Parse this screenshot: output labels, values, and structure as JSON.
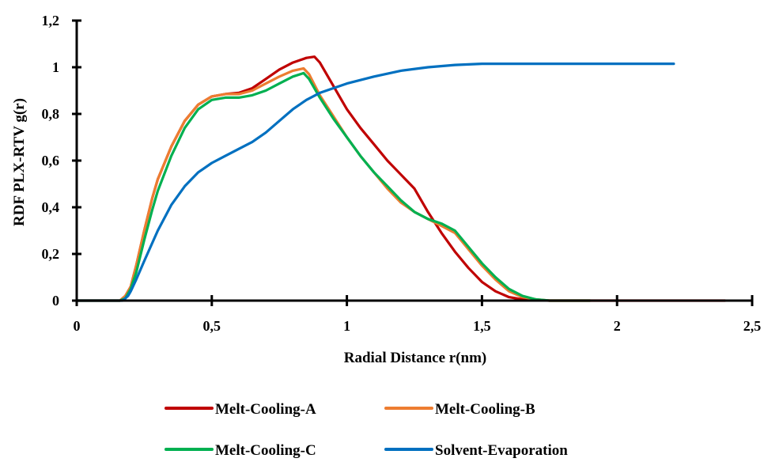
{
  "chart_data": {
    "type": "line",
    "title": "",
    "xlabel": "Radial Distance r(nm)",
    "ylabel": "RDF PLX-RTV g(r)",
    "xlim": [
      0,
      2.5
    ],
    "ylim": [
      0,
      1.2
    ],
    "xticks": [
      0,
      0.5,
      1,
      1.5,
      2,
      2.5
    ],
    "xtick_labels": [
      "0",
      "0,5",
      "1",
      "1,5",
      "2",
      "2,5"
    ],
    "yticks": [
      0,
      0.2,
      0.4,
      0.6,
      0.8,
      1,
      1.2
    ],
    "ytick_labels": [
      "0",
      "0,2",
      "0,4",
      "0,6",
      "0,8",
      "1",
      "1,2"
    ],
    "grid": false,
    "legend_position": "bottom",
    "series": [
      {
        "name": "Melt-Cooling-A",
        "color": "#c00000",
        "x": [
          0,
          0.16,
          0.18,
          0.2,
          0.22,
          0.25,
          0.28,
          0.3,
          0.35,
          0.4,
          0.45,
          0.5,
          0.55,
          0.6,
          0.65,
          0.7,
          0.75,
          0.8,
          0.85,
          0.88,
          0.9,
          0.95,
          1.0,
          1.05,
          1.1,
          1.15,
          1.2,
          1.25,
          1.3,
          1.35,
          1.4,
          1.45,
          1.5,
          1.55,
          1.6,
          1.65,
          1.7,
          1.75,
          1.8,
          1.9,
          2.0,
          2.2,
          2.4
        ],
        "y": [
          0,
          0,
          0.02,
          0.06,
          0.15,
          0.3,
          0.44,
          0.52,
          0.66,
          0.77,
          0.84,
          0.875,
          0.885,
          0.89,
          0.91,
          0.95,
          0.99,
          1.02,
          1.04,
          1.045,
          1.02,
          0.92,
          0.82,
          0.74,
          0.67,
          0.6,
          0.54,
          0.48,
          0.38,
          0.29,
          0.21,
          0.14,
          0.08,
          0.04,
          0.015,
          0.005,
          0.002,
          0,
          0,
          0,
          0,
          0,
          0
        ]
      },
      {
        "name": "Melt-Cooling-B",
        "color": "#ed7d31",
        "x": [
          0,
          0.16,
          0.18,
          0.2,
          0.22,
          0.25,
          0.28,
          0.3,
          0.35,
          0.4,
          0.45,
          0.5,
          0.55,
          0.6,
          0.65,
          0.7,
          0.75,
          0.8,
          0.84,
          0.86,
          0.9,
          0.95,
          1.0,
          1.05,
          1.1,
          1.15,
          1.2,
          1.25,
          1.3,
          1.35,
          1.4,
          1.45,
          1.5,
          1.55,
          1.6,
          1.65,
          1.7,
          1.75,
          1.8,
          1.9
        ],
        "y": [
          0,
          0,
          0.02,
          0.06,
          0.15,
          0.3,
          0.44,
          0.52,
          0.66,
          0.77,
          0.84,
          0.875,
          0.885,
          0.885,
          0.9,
          0.93,
          0.96,
          0.985,
          0.995,
          0.97,
          0.88,
          0.79,
          0.7,
          0.62,
          0.55,
          0.48,
          0.42,
          0.38,
          0.35,
          0.32,
          0.29,
          0.22,
          0.15,
          0.09,
          0.04,
          0.015,
          0.005,
          0,
          0,
          0
        ]
      },
      {
        "name": "Melt-Cooling-C",
        "color": "#00b050",
        "x": [
          0,
          0.16,
          0.18,
          0.2,
          0.22,
          0.25,
          0.28,
          0.3,
          0.35,
          0.4,
          0.45,
          0.5,
          0.55,
          0.6,
          0.65,
          0.7,
          0.75,
          0.8,
          0.84,
          0.86,
          0.9,
          0.95,
          1.0,
          1.05,
          1.1,
          1.15,
          1.2,
          1.25,
          1.3,
          1.35,
          1.4,
          1.45,
          1.5,
          1.55,
          1.6,
          1.65,
          1.7,
          1.75,
          1.8,
          1.9
        ],
        "y": [
          0,
          0,
          0.01,
          0.05,
          0.12,
          0.26,
          0.39,
          0.47,
          0.62,
          0.74,
          0.82,
          0.86,
          0.87,
          0.87,
          0.88,
          0.9,
          0.93,
          0.96,
          0.975,
          0.95,
          0.87,
          0.78,
          0.7,
          0.62,
          0.55,
          0.49,
          0.43,
          0.38,
          0.35,
          0.33,
          0.3,
          0.23,
          0.16,
          0.1,
          0.05,
          0.02,
          0.005,
          0,
          0,
          0
        ]
      },
      {
        "name": "Solvent-Evaporation",
        "color": "#0070c0",
        "x": [
          0,
          0.17,
          0.19,
          0.2,
          0.22,
          0.25,
          0.3,
          0.35,
          0.4,
          0.45,
          0.5,
          0.55,
          0.6,
          0.65,
          0.7,
          0.75,
          0.8,
          0.85,
          0.9,
          0.95,
          1.0,
          1.1,
          1.2,
          1.3,
          1.4,
          1.5,
          1.6,
          1.8,
          2.0,
          2.21
        ],
        "y": [
          0,
          0,
          0.02,
          0.04,
          0.09,
          0.17,
          0.3,
          0.41,
          0.49,
          0.55,
          0.59,
          0.62,
          0.65,
          0.68,
          0.72,
          0.77,
          0.82,
          0.86,
          0.89,
          0.91,
          0.93,
          0.96,
          0.985,
          1.0,
          1.01,
          1.015,
          1.015,
          1.015,
          1.015,
          1.015
        ]
      }
    ]
  }
}
